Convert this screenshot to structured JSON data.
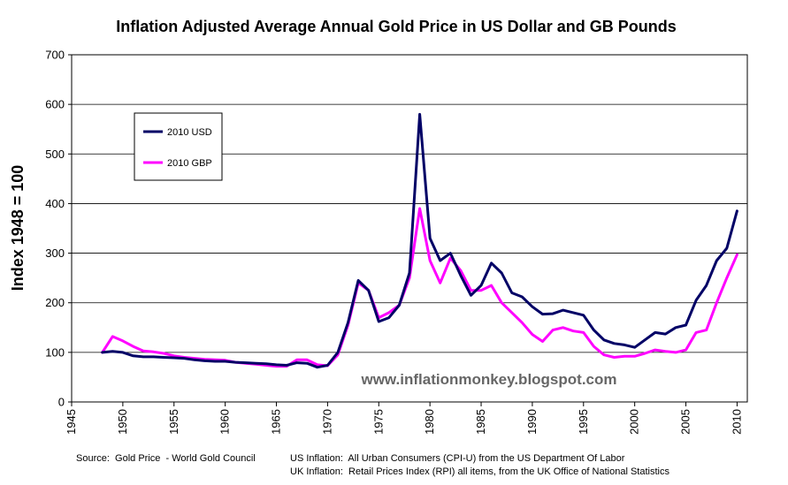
{
  "chart_data": {
    "type": "line",
    "title": "Inflation Adjusted Average Annual Gold Price in US Dollar and GB Pounds",
    "xlabel": "",
    "ylabel": "Index 1948 = 100",
    "xlim": [
      1945,
      2011
    ],
    "ylim": [
      0,
      700
    ],
    "x_ticks": [
      1945,
      1950,
      1955,
      1960,
      1965,
      1970,
      1975,
      1980,
      1985,
      1990,
      1995,
      2000,
      2005,
      2010
    ],
    "y_ticks": [
      0,
      100,
      200,
      300,
      400,
      500,
      600,
      700
    ],
    "grid": true,
    "legend_position": "top-left",
    "watermark": "www.inflationmonkey.blogspot.com",
    "series": [
      {
        "name": "2010 USD",
        "color": "#000066",
        "x": [
          1948,
          1949,
          1950,
          1951,
          1952,
          1953,
          1954,
          1955,
          1956,
          1957,
          1958,
          1959,
          1960,
          1961,
          1962,
          1963,
          1964,
          1965,
          1966,
          1967,
          1968,
          1969,
          1970,
          1971,
          1972,
          1973,
          1974,
          1975,
          1976,
          1977,
          1978,
          1979,
          1980,
          1981,
          1982,
          1983,
          1984,
          1985,
          1986,
          1987,
          1988,
          1989,
          1990,
          1991,
          1992,
          1993,
          1994,
          1995,
          1996,
          1997,
          1998,
          1999,
          2000,
          2001,
          2002,
          2003,
          2004,
          2005,
          2006,
          2007,
          2008,
          2009,
          2010
        ],
        "values": [
          100,
          102,
          100,
          93,
          91,
          91,
          90,
          89,
          88,
          85,
          83,
          82,
          82,
          80,
          79,
          78,
          77,
          75,
          74,
          79,
          78,
          70,
          74,
          100,
          160,
          245,
          225,
          162,
          170,
          195,
          260,
          580,
          330,
          285,
          300,
          255,
          215,
          235,
          280,
          260,
          220,
          212,
          192,
          177,
          178,
          185,
          180,
          175,
          145,
          125,
          118,
          115,
          110,
          125,
          140,
          137,
          150,
          155,
          205,
          235,
          285,
          310,
          385
        ]
      },
      {
        "name": "2010 GBP",
        "color": "#FF00FF",
        "x": [
          1948,
          1949,
          1950,
          1951,
          1952,
          1953,
          1954,
          1955,
          1956,
          1957,
          1958,
          1959,
          1960,
          1961,
          1962,
          1963,
          1964,
          1965,
          1966,
          1967,
          1968,
          1969,
          1970,
          1971,
          1972,
          1973,
          1974,
          1975,
          1976,
          1977,
          1978,
          1979,
          1980,
          1981,
          1982,
          1983,
          1984,
          1985,
          1986,
          1987,
          1988,
          1989,
          1990,
          1991,
          1992,
          1993,
          1994,
          1995,
          1996,
          1997,
          1998,
          1999,
          2000,
          2001,
          2002,
          2003,
          2004,
          2005,
          2006,
          2007,
          2008,
          2009,
          2010
        ],
        "values": [
          100,
          132,
          123,
          112,
          103,
          101,
          98,
          93,
          90,
          88,
          86,
          85,
          84,
          80,
          78,
          76,
          74,
          72,
          72,
          85,
          85,
          75,
          73,
          95,
          155,
          240,
          225,
          170,
          180,
          195,
          250,
          390,
          285,
          240,
          290,
          265,
          225,
          225,
          235,
          200,
          180,
          160,
          136,
          122,
          145,
          150,
          143,
          140,
          112,
          95,
          90,
          92,
          92,
          98,
          105,
          102,
          100,
          105,
          140,
          145,
          200,
          250,
          297
        ]
      }
    ]
  },
  "footer": {
    "source": "Source:  Gold Price  - World Gold Council",
    "us_inflation": "US Inflation:  All Urban Consumers (CPI-U) from the US Department Of Labor",
    "uk_inflation": "UK Inflation:  Retail Prices Index (RPI) all items, from the UK Office of National Statistics"
  }
}
